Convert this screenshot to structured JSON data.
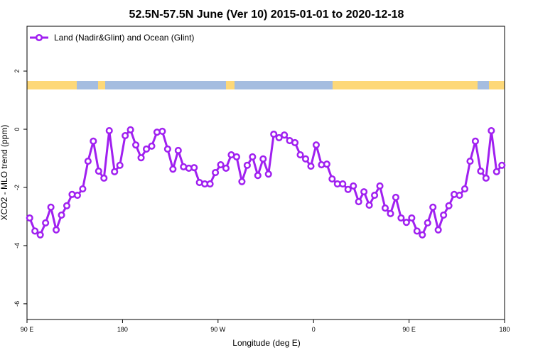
{
  "chart_data": {
    "type": "line",
    "title": "52.5N-57.5N June (Ver 10)   2015-01-01 to 2020-12-18",
    "x_label": "Longitude (deg E)",
    "y_label": "XCO2 - MLO trend (ppm)",
    "xlim": [
      90,
      540
    ],
    "xticks": [
      {
        "value": 90,
        "label": "90 E"
      },
      {
        "value": 180,
        "label": "180"
      },
      {
        "value": 270,
        "label": "90 W"
      },
      {
        "value": 360,
        "label": "0"
      },
      {
        "value": 450,
        "label": "90 E"
      },
      {
        "value": 540,
        "label": "180"
      }
    ],
    "ylim": [
      -6.54,
      3.54
    ],
    "yticks": [
      -6,
      -4,
      -2,
      0,
      2
    ],
    "legend": "top-left",
    "x": [
      92.5,
      97.5,
      102.5,
      107.5,
      112.5,
      117.5,
      122.5,
      127.5,
      132.5,
      137.5,
      142.5,
      147.5,
      152.5,
      157.5,
      162.5,
      167.5,
      172.5,
      177.5,
      182.5,
      187.5,
      192.5,
      197.5,
      202.5,
      207.5,
      212.5,
      217.5,
      222.5,
      227.5,
      232.5,
      237.5,
      242.5,
      247.5,
      252.5,
      257.5,
      262.5,
      267.5,
      272.5,
      277.5,
      282.5,
      287.5,
      292.5,
      297.5,
      302.5,
      307.5,
      312.5,
      317.5,
      322.5,
      327.5,
      332.5,
      337.5,
      342.5,
      347.5,
      352.5,
      357.5,
      362.5,
      367.5,
      372.5,
      377.5,
      382.5,
      387.5,
      392.5,
      397.5,
      402.5,
      407.5,
      412.5,
      417.5,
      422.5,
      427.5,
      432.5,
      437.5,
      442.5,
      447.5,
      452.5,
      457.5,
      462.5,
      467.5,
      472.5,
      477.5,
      482.5,
      487.5,
      492.5,
      497.5,
      502.5,
      507.5,
      512.5,
      517.5,
      522.5,
      527.5,
      532.5,
      537.5
    ],
    "series": [
      {
        "name": "Land (Nadir&Glint) and Ocean (Glint)",
        "color": "#a020f0",
        "values": [
          -3.05,
          -3.5,
          -3.63,
          -3.22,
          -2.68,
          -3.46,
          -2.95,
          -2.63,
          -2.24,
          -2.27,
          -2.05,
          -1.1,
          -0.41,
          -1.44,
          -1.68,
          -0.05,
          -1.46,
          -1.24,
          -0.22,
          -0.02,
          -0.54,
          -0.98,
          -0.68,
          -0.58,
          -0.1,
          -0.07,
          -0.68,
          -1.37,
          -0.73,
          -1.29,
          -1.34,
          -1.32,
          -1.83,
          -1.88,
          -1.88,
          -1.49,
          -1.22,
          -1.34,
          -0.88,
          -0.95,
          -1.8,
          -1.24,
          -0.95,
          -1.59,
          -1.02,
          -1.54,
          -0.17,
          -0.29,
          -0.2,
          -0.39,
          -0.46,
          -0.88,
          -1.02,
          -1.27,
          -0.54,
          -1.22,
          -1.2,
          -1.71,
          -1.88,
          -1.88,
          -2.07,
          -1.95,
          -2.49,
          -2.15,
          -2.61,
          -2.27,
          -1.95,
          -2.71,
          -2.9,
          -2.34,
          -3.05,
          -3.2,
          -3.05,
          -3.5,
          -3.63,
          -3.22,
          -2.68,
          -3.46,
          -2.95,
          -2.63,
          -2.24,
          -2.27,
          -2.05,
          -1.1,
          -0.41,
          -1.44,
          -1.68,
          -0.05,
          -1.46,
          -1.24
        ]
      }
    ]
  }
}
